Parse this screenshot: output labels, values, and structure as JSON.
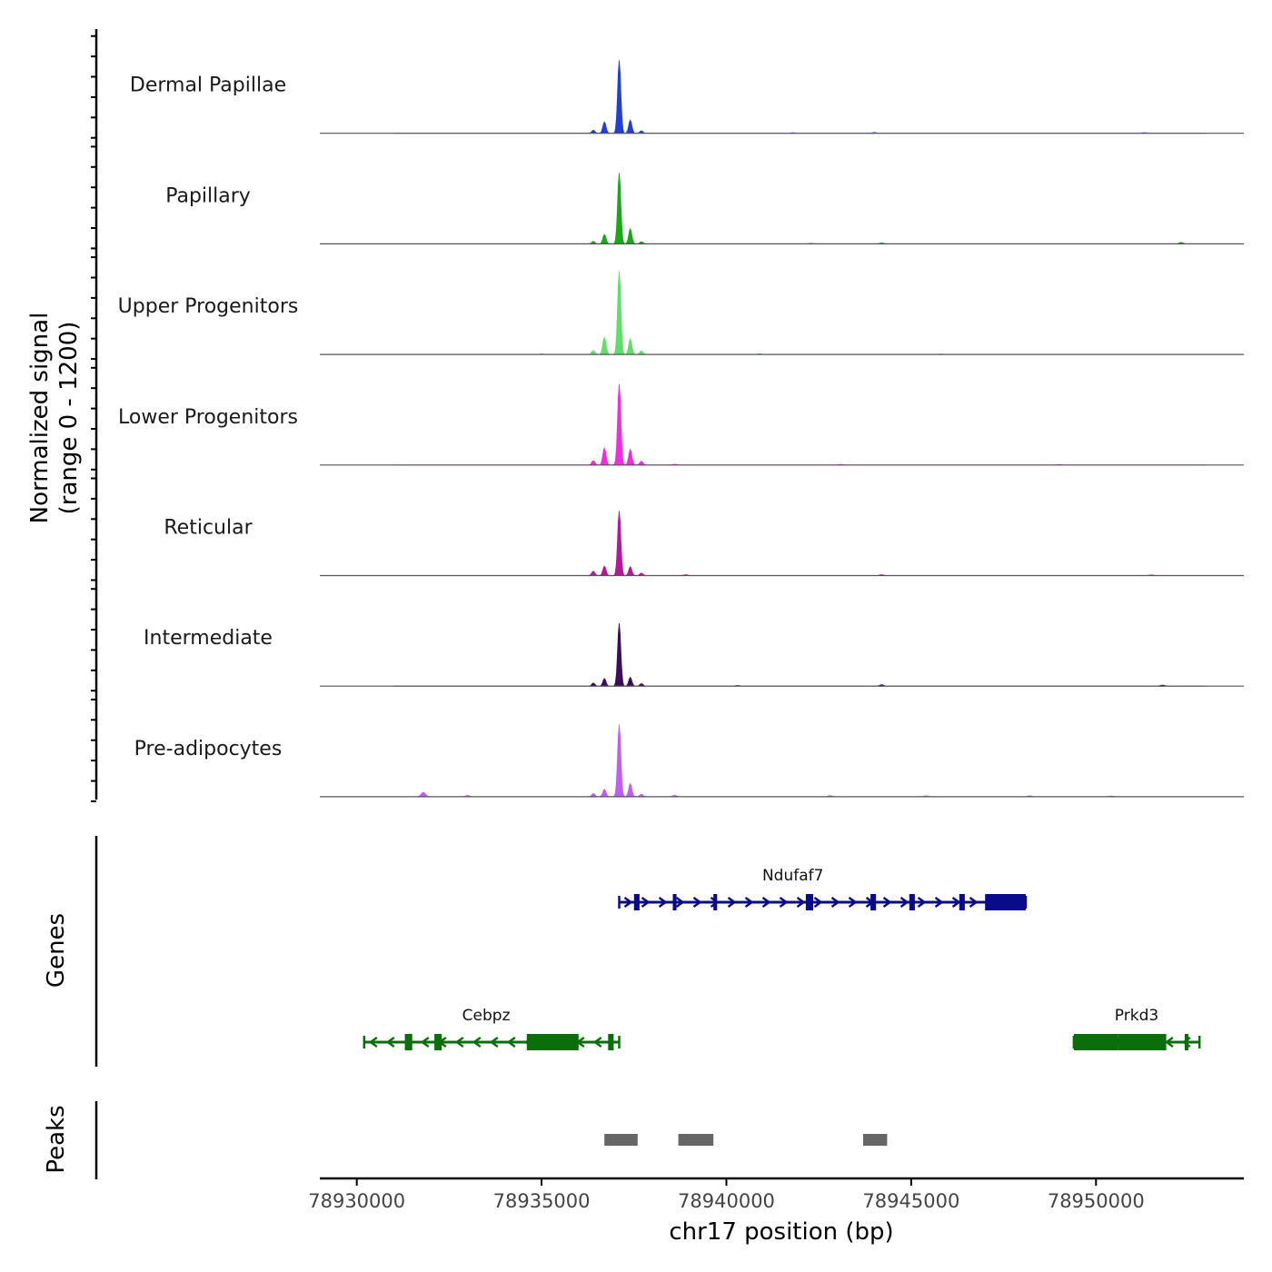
{
  "chart_data": {
    "type": "area",
    "ylabel": "Normalized signal",
    "yrange_label": "(range 0 - 1200)",
    "ylim": [
      0,
      1200
    ],
    "xlabel": "chr17 position (bp)",
    "xlim": [
      78929000,
      78954000
    ],
    "xticks": [
      78930000,
      78935000,
      78940000,
      78945000,
      78950000
    ],
    "tracks": [
      {
        "name": "Dermal Papillae",
        "color": "#1f3fd6",
        "peaks": [
          {
            "x": 78937100,
            "y": 1160
          },
          {
            "x": 78936700,
            "y": 180
          },
          {
            "x": 78937400,
            "y": 210
          },
          {
            "x": 78936400,
            "y": 50
          },
          {
            "x": 78937700,
            "y": 40
          }
        ],
        "minor": [
          {
            "x": 78944000,
            "y": 12
          },
          {
            "x": 78941800,
            "y": 8
          },
          {
            "x": 78951300,
            "y": 10
          }
        ]
      },
      {
        "name": "Papillary",
        "color": "#1aa81a",
        "peaks": [
          {
            "x": 78937100,
            "y": 1130
          },
          {
            "x": 78936700,
            "y": 150
          },
          {
            "x": 78937400,
            "y": 240
          },
          {
            "x": 78936400,
            "y": 40
          },
          {
            "x": 78937700,
            "y": 35
          }
        ],
        "minor": [
          {
            "x": 78944200,
            "y": 15
          },
          {
            "x": 78952300,
            "y": 22
          },
          {
            "x": 78942300,
            "y": 8
          }
        ]
      },
      {
        "name": "Upper Progenitors",
        "color": "#5fde6a",
        "peaks": [
          {
            "x": 78937100,
            "y": 1320
          },
          {
            "x": 78936700,
            "y": 270
          },
          {
            "x": 78937400,
            "y": 250
          },
          {
            "x": 78936400,
            "y": 60
          },
          {
            "x": 78937700,
            "y": 55
          }
        ],
        "minor": [
          {
            "x": 78935000,
            "y": 10
          },
          {
            "x": 78940900,
            "y": 12
          },
          {
            "x": 78945800,
            "y": 8
          }
        ]
      },
      {
        "name": "Lower Progenitors",
        "color": "#f02de0",
        "peaks": [
          {
            "x": 78937100,
            "y": 1290
          },
          {
            "x": 78936700,
            "y": 270
          },
          {
            "x": 78937400,
            "y": 250
          },
          {
            "x": 78936400,
            "y": 70
          },
          {
            "x": 78937700,
            "y": 60
          }
        ],
        "minor": [
          {
            "x": 78938600,
            "y": 12
          },
          {
            "x": 78943100,
            "y": 10
          },
          {
            "x": 78949000,
            "y": 8
          }
        ]
      },
      {
        "name": "Reticular",
        "color": "#b5189e",
        "peaks": [
          {
            "x": 78937100,
            "y": 1030
          },
          {
            "x": 78936700,
            "y": 150
          },
          {
            "x": 78937400,
            "y": 140
          },
          {
            "x": 78936400,
            "y": 70
          },
          {
            "x": 78937700,
            "y": 40
          }
        ],
        "minor": [
          {
            "x": 78938900,
            "y": 12
          },
          {
            "x": 78944200,
            "y": 14
          },
          {
            "x": 78951500,
            "y": 10
          }
        ]
      },
      {
        "name": "Intermediate",
        "color": "#3a0d5c",
        "peaks": [
          {
            "x": 78937100,
            "y": 1000
          },
          {
            "x": 78936700,
            "y": 120
          },
          {
            "x": 78937400,
            "y": 140
          },
          {
            "x": 78936400,
            "y": 50
          },
          {
            "x": 78937700,
            "y": 40
          }
        ],
        "minor": [
          {
            "x": 78944200,
            "y": 22
          },
          {
            "x": 78951800,
            "y": 18
          },
          {
            "x": 78940300,
            "y": 10
          }
        ]
      },
      {
        "name": "Pre-adipocytes",
        "color": "#c05ef2",
        "peaks": [
          {
            "x": 78937100,
            "y": 1150
          },
          {
            "x": 78936700,
            "y": 120
          },
          {
            "x": 78937400,
            "y": 210
          },
          {
            "x": 78936400,
            "y": 50
          },
          {
            "x": 78937700,
            "y": 40
          }
        ],
        "minor": [
          {
            "x": 78931800,
            "y": 70
          },
          {
            "x": 78933000,
            "y": 20
          },
          {
            "x": 78938600,
            "y": 22
          },
          {
            "x": 78942800,
            "y": 18
          },
          {
            "x": 78945400,
            "y": 14
          },
          {
            "x": 78948200,
            "y": 14
          },
          {
            "x": 78950400,
            "y": 12
          }
        ]
      }
    ],
    "genes_label": "Genes",
    "genes": [
      {
        "name": "Ndufaf7",
        "strand": "+",
        "color": "#0a0a8c",
        "start": 78937100,
        "end": 78948100,
        "row": 1,
        "exons": [
          [
            78937500,
            78937650
          ],
          [
            78938550,
            78938650
          ],
          [
            78939650,
            78939750
          ],
          [
            78942150,
            78942350
          ],
          [
            78943900,
            78944050
          ],
          [
            78944950,
            78945100
          ],
          [
            78946300,
            78946450
          ],
          [
            78947000,
            78948100
          ]
        ]
      },
      {
        "name": "Cebpz",
        "strand": "-",
        "color": "#0a6e0a",
        "start": 78930200,
        "end": 78937100,
        "row": 2,
        "exons": [
          [
            78931300,
            78931500
          ],
          [
            78932100,
            78932300
          ],
          [
            78934600,
            78936000
          ],
          [
            78936800,
            78936950
          ]
        ]
      },
      {
        "name": "Prkd3",
        "strand": "-",
        "color": "#0a6e0a",
        "start": 78949400,
        "end": 78952800,
        "row": 2,
        "exons": [
          [
            78949400,
            78950600
          ],
          [
            78950600,
            78951900
          ],
          [
            78952400,
            78952500
          ]
        ]
      }
    ],
    "peaks_label": "Peaks",
    "peak_regions": [
      [
        78936700,
        78937600
      ],
      [
        78938700,
        78939650
      ],
      [
        78943700,
        78944350
      ]
    ]
  }
}
